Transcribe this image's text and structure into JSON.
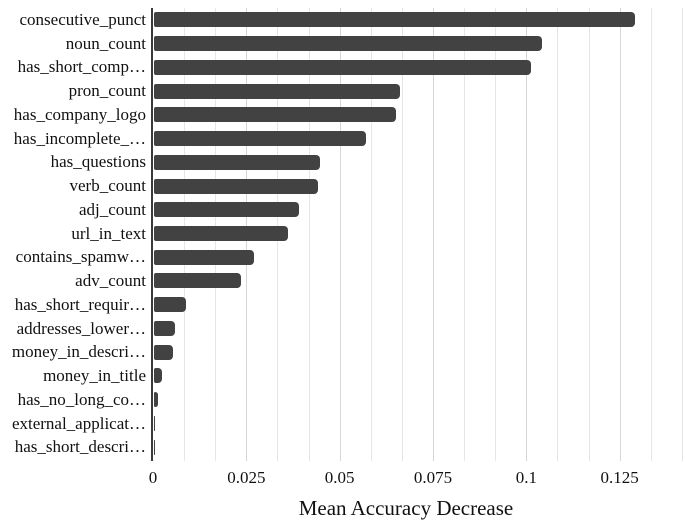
{
  "chart_data": {
    "type": "bar",
    "orientation": "horizontal",
    "xlabel": "Mean Accuracy Decrease",
    "ylabel": "",
    "title": "",
    "categories": [
      "consecutive_punct",
      "noun_count",
      "has_short_comp…",
      "pron_count",
      "has_company_logo",
      "has_incomplete_…",
      "has_questions",
      "verb_count",
      "adj_count",
      "url_in_text",
      "contains_spamw…",
      "adv_count",
      "has_short_requir…",
      "addresses_lower…",
      "money_in_descri…",
      "money_in_title",
      "has_no_long_co…",
      "external_applicat…",
      "has_short_descri…"
    ],
    "values": [
      0.129,
      0.104,
      0.101,
      0.066,
      0.065,
      0.057,
      0.0445,
      0.044,
      0.039,
      0.036,
      0.027,
      0.0235,
      0.0088,
      0.0058,
      0.0051,
      0.0024,
      0.0013,
      0.0003,
      0.0001
    ],
    "xlim": [
      0,
      0.1425
    ],
    "xticks": [
      0,
      0.025,
      0.05,
      0.075,
      0.1,
      0.125
    ],
    "xtick_labels": [
      "0",
      "0.025",
      "0.05",
      "0.075",
      "0.1",
      "0.125"
    ],
    "minor_grid_step": 0.0083333,
    "grid": true,
    "legend_position": "none",
    "colors": {
      "bar": "#424242",
      "grid_minor": "#e6e6e6",
      "grid_major": "#d6d6d6",
      "axis": "#3a3a3a",
      "background": "#ffffff",
      "text": "#111111"
    }
  }
}
